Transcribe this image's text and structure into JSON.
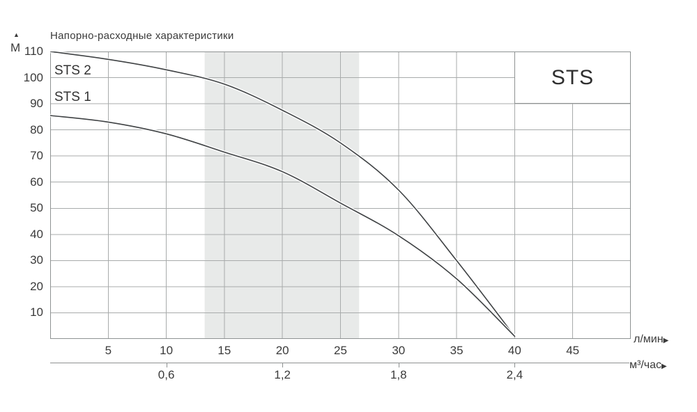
{
  "title": "Напорно-расходные характеристики",
  "y_axis": {
    "unit": "М",
    "arrow": "▲",
    "ticks": [
      110,
      100,
      90,
      80,
      70,
      60,
      50,
      40,
      30,
      20,
      10
    ]
  },
  "x_axis_primary": {
    "unit": "л/мин",
    "arrow": "▶",
    "ticks": [
      5,
      10,
      15,
      20,
      25,
      30,
      35,
      40,
      45
    ]
  },
  "x_axis_secondary": {
    "unit": "м³/час",
    "arrow": "▶",
    "ticks": [
      {
        "label": "0,6",
        "q": 10
      },
      {
        "label": "1,2",
        "q": 20
      },
      {
        "label": "1,8",
        "q": 30
      },
      {
        "label": "2,4",
        "q": 40
      }
    ]
  },
  "series_labels": {
    "sts2": "STS 2",
    "sts1": "STS 1"
  },
  "legend_box_label": "STS",
  "colors": {
    "band": "#e8eae9",
    "grid": "#a8abab",
    "axis": "#8e9292",
    "curve": "#3f4244",
    "text": "#3a3a3a"
  },
  "chart_data": {
    "type": "line",
    "title": "Напорно-расходные характеристики",
    "ylabel": "М",
    "xlabel": "л/мин",
    "xlabel_secondary": "м³/час",
    "xlim": [
      0,
      50
    ],
    "ylim": [
      0,
      110
    ],
    "x_gridline_step": 5,
    "y_gridline_step": 10,
    "grid": true,
    "shaded_band_x": [
      13.3,
      26.6
    ],
    "secondary_axis_conversion": "1 м³/час = 16.67 л/мин",
    "series": [
      {
        "name": "STS 2",
        "x": [
          0,
          5,
          10,
          15,
          20,
          25,
          30,
          35,
          40
        ],
        "y": [
          110,
          107,
          103,
          97.5,
          87.5,
          75,
          57,
          30,
          1
        ]
      },
      {
        "name": "STS 1",
        "x": [
          0,
          5,
          10,
          15,
          20,
          25,
          30,
          35,
          40
        ],
        "y": [
          85.5,
          83,
          78.5,
          71.5,
          64,
          52,
          39.5,
          23,
          1
        ]
      }
    ],
    "legend_position": "top-right"
  }
}
